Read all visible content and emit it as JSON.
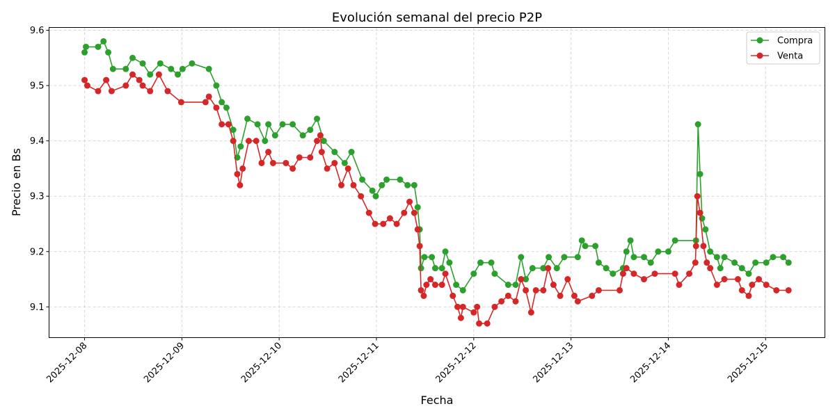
{
  "chart_data": {
    "type": "line",
    "title": "Evolución semanal del precio P2P",
    "xlabel": "Fecha",
    "ylabel": "Precio en Bs",
    "xlim": [
      "2025-12-07 15:14",
      "2025-12-15 14:38"
    ],
    "ylim": [
      9.0445,
      9.605
    ],
    "x_ticks": [
      "2025-12-08",
      "2025-12-09",
      "2025-12-10",
      "2025-12-11",
      "2025-12-12",
      "2025-12-13",
      "2025-12-14",
      "2025-12-15"
    ],
    "y_ticks": [
      "9.1",
      "9.2",
      "9.3",
      "9.4",
      "9.5",
      "9.6"
    ],
    "grid": true,
    "legend_position": "top-right",
    "series": [
      {
        "name": "Compra",
        "color": "#2ca02c",
        "points": [
          [
            "2025-12-08 00:00",
            9.56
          ],
          [
            "2025-12-08 00:20",
            9.57
          ],
          [
            "2025-12-08 03:20",
            9.57
          ],
          [
            "2025-12-08 04:40",
            9.58
          ],
          [
            "2025-12-08 05:50",
            9.56
          ],
          [
            "2025-12-08 07:00",
            9.53
          ],
          [
            "2025-12-08 10:10",
            9.53
          ],
          [
            "2025-12-08 11:50",
            9.55
          ],
          [
            "2025-12-08 14:20",
            9.54
          ],
          [
            "2025-12-08 16:10",
            9.52
          ],
          [
            "2025-12-08 18:40",
            9.54
          ],
          [
            "2025-12-08 21:20",
            9.53
          ],
          [
            "2025-12-08 23:00",
            9.52
          ],
          [
            "2025-12-09 00:10",
            9.53
          ],
          [
            "2025-12-09 02:30",
            9.54
          ],
          [
            "2025-12-09 06:40",
            9.53
          ],
          [
            "2025-12-09 08:30",
            9.5
          ],
          [
            "2025-12-09 09:50",
            9.47
          ],
          [
            "2025-12-09 11:00",
            9.46
          ],
          [
            "2025-12-09 12:40",
            9.42
          ],
          [
            "2025-12-09 13:40",
            9.37
          ],
          [
            "2025-12-09 14:30",
            9.39
          ],
          [
            "2025-12-09 16:10",
            9.44
          ],
          [
            "2025-12-09 18:40",
            9.43
          ],
          [
            "2025-12-09 20:30",
            9.4
          ],
          [
            "2025-12-09 21:20",
            9.43
          ],
          [
            "2025-12-09 23:00",
            9.41
          ],
          [
            "2025-12-10 00:50",
            9.43
          ],
          [
            "2025-12-10 03:20",
            9.43
          ],
          [
            "2025-12-10 05:50",
            9.41
          ],
          [
            "2025-12-10 07:40",
            9.42
          ],
          [
            "2025-12-10 09:20",
            9.44
          ],
          [
            "2025-12-10 11:00",
            9.4
          ],
          [
            "2025-12-10 13:40",
            9.38
          ],
          [
            "2025-12-10 16:10",
            9.36
          ],
          [
            "2025-12-10 17:50",
            9.38
          ],
          [
            "2025-12-10 20:30",
            9.33
          ],
          [
            "2025-12-10 23:00",
            9.31
          ],
          [
            "2025-12-10 23:50",
            9.3
          ],
          [
            "2025-12-11 01:20",
            9.32
          ],
          [
            "2025-12-11 02:30",
            9.33
          ],
          [
            "2025-12-11 05:50",
            9.33
          ],
          [
            "2025-12-11 07:40",
            9.32
          ],
          [
            "2025-12-11 09:20",
            9.32
          ],
          [
            "2025-12-11 10:10",
            9.28
          ],
          [
            "2025-12-11 10:40",
            9.24
          ],
          [
            "2025-12-11 11:00",
            9.17
          ],
          [
            "2025-12-11 11:50",
            9.19
          ],
          [
            "2025-12-11 13:40",
            9.19
          ],
          [
            "2025-12-11 14:30",
            9.17
          ],
          [
            "2025-12-11 16:10",
            9.17
          ],
          [
            "2025-12-11 17:00",
            9.2
          ],
          [
            "2025-12-11 18:00",
            9.18
          ],
          [
            "2025-12-11 19:40",
            9.14
          ],
          [
            "2025-12-11 21:20",
            9.13
          ],
          [
            "2025-12-12 00:00",
            9.16
          ],
          [
            "2025-12-12 01:40",
            9.18
          ],
          [
            "2025-12-12 04:20",
            9.18
          ],
          [
            "2025-12-12 05:10",
            9.16
          ],
          [
            "2025-12-12 08:30",
            9.14
          ],
          [
            "2025-12-12 10:20",
            9.14
          ],
          [
            "2025-12-12 11:40",
            9.19
          ],
          [
            "2025-12-12 12:50",
            9.15
          ],
          [
            "2025-12-12 14:30",
            9.17
          ],
          [
            "2025-12-12 17:10",
            9.17
          ],
          [
            "2025-12-12 18:30",
            9.19
          ],
          [
            "2025-12-12 20:30",
            9.17
          ],
          [
            "2025-12-12 22:20",
            9.19
          ],
          [
            "2025-12-13 01:40",
            9.19
          ],
          [
            "2025-12-13 02:40",
            9.22
          ],
          [
            "2025-12-13 03:30",
            9.21
          ],
          [
            "2025-12-13 06:00",
            9.21
          ],
          [
            "2025-12-13 06:50",
            9.18
          ],
          [
            "2025-12-13 08:40",
            9.17
          ],
          [
            "2025-12-13 10:20",
            9.16
          ],
          [
            "2025-12-13 12:50",
            9.17
          ],
          [
            "2025-12-13 13:40",
            9.2
          ],
          [
            "2025-12-13 14:40",
            9.22
          ],
          [
            "2025-12-13 15:30",
            9.19
          ],
          [
            "2025-12-13 18:00",
            9.19
          ],
          [
            "2025-12-13 19:40",
            9.18
          ],
          [
            "2025-12-13 21:30",
            9.2
          ],
          [
            "2025-12-14 00:00",
            9.2
          ],
          [
            "2025-12-14 01:40",
            9.22
          ],
          [
            "2025-12-14 06:50",
            9.22
          ],
          [
            "2025-12-14 07:20",
            9.43
          ],
          [
            "2025-12-14 07:50",
            9.34
          ],
          [
            "2025-12-14 08:20",
            9.26
          ],
          [
            "2025-12-14 09:10",
            9.24
          ],
          [
            "2025-12-14 10:20",
            9.2
          ],
          [
            "2025-12-14 12:00",
            9.19
          ],
          [
            "2025-12-14 12:50",
            9.17
          ],
          [
            "2025-12-14 13:50",
            9.19
          ],
          [
            "2025-12-14 16:20",
            9.18
          ],
          [
            "2025-12-14 18:10",
            9.17
          ],
          [
            "2025-12-14 19:50",
            9.16
          ],
          [
            "2025-12-14 21:30",
            9.18
          ],
          [
            "2025-12-15 00:10",
            9.18
          ],
          [
            "2025-12-15 01:50",
            9.19
          ],
          [
            "2025-12-15 04:20",
            9.19
          ],
          [
            "2025-12-15 05:40",
            9.18
          ]
        ]
      },
      {
        "name": "Venta",
        "color": "#d62728",
        "points": [
          [
            "2025-12-08 00:00",
            9.51
          ],
          [
            "2025-12-08 00:40",
            9.5
          ],
          [
            "2025-12-08 03:20",
            9.49
          ],
          [
            "2025-12-08 05:20",
            9.51
          ],
          [
            "2025-12-08 06:40",
            9.49
          ],
          [
            "2025-12-08 10:10",
            9.5
          ],
          [
            "2025-12-08 11:50",
            9.52
          ],
          [
            "2025-12-08 13:30",
            9.51
          ],
          [
            "2025-12-08 14:20",
            9.5
          ],
          [
            "2025-12-08 16:10",
            9.49
          ],
          [
            "2025-12-08 18:20",
            9.52
          ],
          [
            "2025-12-08 20:30",
            9.49
          ],
          [
            "2025-12-08 23:50",
            9.47
          ],
          [
            "2025-12-09 05:50",
            9.47
          ],
          [
            "2025-12-09 06:40",
            9.48
          ],
          [
            "2025-12-09 08:30",
            9.46
          ],
          [
            "2025-12-09 09:50",
            9.43
          ],
          [
            "2025-12-09 11:30",
            9.43
          ],
          [
            "2025-12-09 12:40",
            9.4
          ],
          [
            "2025-12-09 13:40",
            9.34
          ],
          [
            "2025-12-09 14:20",
            9.32
          ],
          [
            "2025-12-09 15:00",
            9.35
          ],
          [
            "2025-12-09 16:30",
            9.4
          ],
          [
            "2025-12-09 18:20",
            9.4
          ],
          [
            "2025-12-09 19:40",
            9.36
          ],
          [
            "2025-12-09 21:20",
            9.38
          ],
          [
            "2025-12-09 22:30",
            9.36
          ],
          [
            "2025-12-10 01:40",
            9.36
          ],
          [
            "2025-12-10 03:20",
            9.35
          ],
          [
            "2025-12-10 05:00",
            9.37
          ],
          [
            "2025-12-10 07:40",
            9.37
          ],
          [
            "2025-12-10 09:20",
            9.4
          ],
          [
            "2025-12-10 10:10",
            9.41
          ],
          [
            "2025-12-10 10:30",
            9.38
          ],
          [
            "2025-12-10 11:50",
            9.35
          ],
          [
            "2025-12-10 13:40",
            9.36
          ],
          [
            "2025-12-10 15:20",
            9.32
          ],
          [
            "2025-12-10 17:00",
            9.35
          ],
          [
            "2025-12-10 18:20",
            9.32
          ],
          [
            "2025-12-10 20:10",
            9.3
          ],
          [
            "2025-12-10 22:10",
            9.27
          ],
          [
            "2025-12-10 23:40",
            9.25
          ],
          [
            "2025-12-11 01:40",
            9.25
          ],
          [
            "2025-12-11 03:20",
            9.26
          ],
          [
            "2025-12-11 05:00",
            9.25
          ],
          [
            "2025-12-11 06:50",
            9.27
          ],
          [
            "2025-12-11 08:10",
            9.29
          ],
          [
            "2025-12-11 09:20",
            9.27
          ],
          [
            "2025-12-11 10:10",
            9.24
          ],
          [
            "2025-12-11 10:40",
            9.21
          ],
          [
            "2025-12-11 11:00",
            9.13
          ],
          [
            "2025-12-11 11:40",
            9.12
          ],
          [
            "2025-12-11 12:20",
            9.14
          ],
          [
            "2025-12-11 13:20",
            9.15
          ],
          [
            "2025-12-11 14:30",
            9.14
          ],
          [
            "2025-12-11 16:10",
            9.14
          ],
          [
            "2025-12-11 17:00",
            9.16
          ],
          [
            "2025-12-11 18:50",
            9.12
          ],
          [
            "2025-12-11 20:00",
            9.1
          ],
          [
            "2025-12-11 20:50",
            9.08
          ],
          [
            "2025-12-11 21:20",
            9.1
          ],
          [
            "2025-12-12 00:00",
            9.09
          ],
          [
            "2025-12-12 00:50",
            9.1
          ],
          [
            "2025-12-12 01:20",
            9.07
          ],
          [
            "2025-12-12 03:20",
            9.07
          ],
          [
            "2025-12-12 05:10",
            9.1
          ],
          [
            "2025-12-12 06:50",
            9.11
          ],
          [
            "2025-12-12 08:30",
            9.12
          ],
          [
            "2025-12-12 10:20",
            9.11
          ],
          [
            "2025-12-12 11:40",
            9.15
          ],
          [
            "2025-12-12 12:50",
            9.13
          ],
          [
            "2025-12-12 14:10",
            9.09
          ],
          [
            "2025-12-12 15:20",
            9.13
          ],
          [
            "2025-12-12 17:10",
            9.13
          ],
          [
            "2025-12-12 18:20",
            9.17
          ],
          [
            "2025-12-12 19:40",
            9.14
          ],
          [
            "2025-12-12 21:20",
            9.12
          ],
          [
            "2025-12-12 23:10",
            9.15
          ],
          [
            "2025-12-13 00:50",
            9.12
          ],
          [
            "2025-12-13 01:40",
            9.11
          ],
          [
            "2025-12-13 05:10",
            9.12
          ],
          [
            "2025-12-13 06:50",
            9.13
          ],
          [
            "2025-12-13 12:00",
            9.13
          ],
          [
            "2025-12-13 12:50",
            9.16
          ],
          [
            "2025-12-13 13:40",
            9.17
          ],
          [
            "2025-12-13 15:30",
            9.16
          ],
          [
            "2025-12-13 18:00",
            9.15
          ],
          [
            "2025-12-13 20:40",
            9.16
          ],
          [
            "2025-12-14 01:40",
            9.16
          ],
          [
            "2025-12-14 02:40",
            9.14
          ],
          [
            "2025-12-14 05:10",
            9.16
          ],
          [
            "2025-12-14 06:40",
            9.18
          ],
          [
            "2025-12-14 06:50",
            9.21
          ],
          [
            "2025-12-14 07:10",
            9.3
          ],
          [
            "2025-12-14 07:50",
            9.27
          ],
          [
            "2025-12-14 08:40",
            9.21
          ],
          [
            "2025-12-14 09:30",
            9.18
          ],
          [
            "2025-12-14 10:20",
            9.17
          ],
          [
            "2025-12-14 12:00",
            9.14
          ],
          [
            "2025-12-14 13:50",
            9.15
          ],
          [
            "2025-12-14 17:10",
            9.15
          ],
          [
            "2025-12-14 18:10",
            9.13
          ],
          [
            "2025-12-14 19:50",
            9.12
          ],
          [
            "2025-12-14 20:40",
            9.14
          ],
          [
            "2025-12-14 22:20",
            9.15
          ],
          [
            "2025-12-15 00:10",
            9.14
          ],
          [
            "2025-12-15 02:40",
            9.13
          ],
          [
            "2025-12-15 05:40",
            9.13
          ]
        ]
      }
    ]
  }
}
